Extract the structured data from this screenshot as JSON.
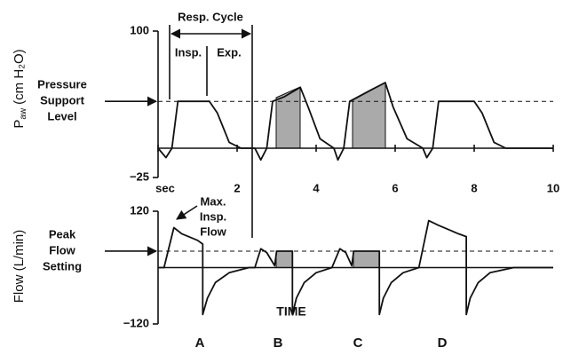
{
  "chart_data": [
    {
      "type": "line",
      "y_label": [
        "P",
        "aw",
        "(cm H₂O)"
      ],
      "ylim": [
        -25,
        100
      ],
      "yticks": [
        {
          "value": 100,
          "label": "100"
        },
        {
          "value": -25,
          "label": "−25"
        }
      ],
      "xlim": [
        0,
        10
      ],
      "xticks": [
        {
          "value": 0,
          "label": "sec"
        },
        2,
        4,
        6,
        8,
        10
      ],
      "reference_line": 40,
      "reference_label": [
        "Pressure",
        "Support",
        "Level"
      ],
      "annotations": {
        "resp_cycle": "Resp. Cycle",
        "insp": "Insp.",
        "exp": "Exp."
      },
      "color": "#111111",
      "x": [
        0,
        0.2,
        0.35,
        0.5,
        1.3,
        1.5,
        1.8,
        2.1,
        2.45,
        2.6,
        2.75,
        2.9,
        3.2,
        3.6,
        3.8,
        4.1,
        4.45,
        4.55,
        4.7,
        4.85,
        5.4,
        5.75,
        5.95,
        6.3,
        6.7,
        6.8,
        6.95,
        7.1,
        8.0,
        8.2,
        8.5,
        8.8,
        10
      ],
      "values": [
        0,
        -8,
        0,
        40,
        40,
        30,
        5,
        0,
        0,
        -10,
        0,
        40,
        44,
        52,
        35,
        8,
        0,
        -10,
        0,
        40,
        50,
        56,
        35,
        8,
        0,
        -8,
        0,
        40,
        40,
        30,
        5,
        0,
        0
      ]
    },
    {
      "type": "line",
      "y_label": "Flow (L/min)",
      "ylim": [
        -120,
        120
      ],
      "yticks": [
        {
          "value": 120,
          "label": "120"
        },
        {
          "value": -120,
          "label": "−120"
        }
      ],
      "xlim": [
        0,
        10
      ],
      "reference_line": 35,
      "reference_label": [
        "Peak",
        "Flow",
        "Setting"
      ],
      "annotation": [
        "Max.",
        "Insp.",
        "Flow"
      ],
      "x_label": "TIME",
      "panel_labels": [
        "A",
        "B",
        "C",
        "D"
      ],
      "color": "#111111",
      "x": [
        0,
        0.15,
        0.4,
        0.6,
        1.0,
        1.13,
        1.13,
        1.25,
        1.45,
        1.8,
        2.3,
        2.45,
        2.6,
        2.75,
        2.95,
        3.0,
        3.4,
        3.4,
        3.5,
        3.7,
        4.0,
        4.4,
        4.6,
        4.75,
        4.9,
        4.95,
        5.6,
        5.6,
        5.7,
        5.9,
        6.2,
        6.6,
        6.85,
        7.1,
        7.6,
        7.8,
        7.8,
        7.9,
        8.1,
        8.4,
        9.0,
        10
      ],
      "values": [
        0,
        0,
        85,
        72,
        58,
        50,
        -100,
        -65,
        -32,
        -11,
        0,
        0,
        40,
        32,
        4,
        35,
        35,
        -100,
        -65,
        -32,
        -11,
        0,
        40,
        32,
        4,
        35,
        35,
        -100,
        -65,
        -32,
        -11,
        0,
        100,
        90,
        72,
        66,
        -100,
        -65,
        -32,
        -11,
        0,
        0
      ]
    }
  ]
}
